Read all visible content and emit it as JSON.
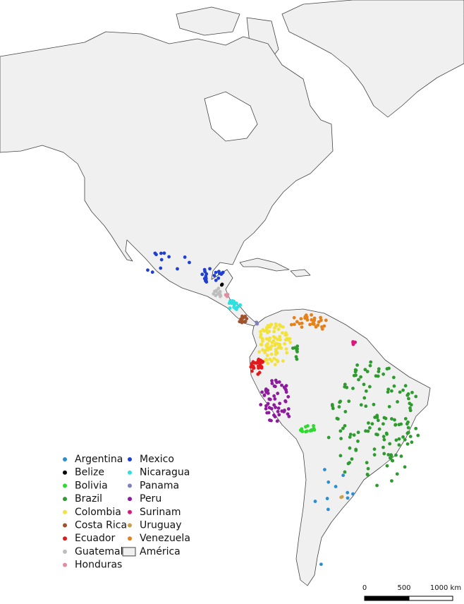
{
  "legend": {
    "items": [
      {
        "label": "Argentina",
        "color": "#2a8fd0"
      },
      {
        "label": "Belize",
        "color": "#000000"
      },
      {
        "label": "Bolivia",
        "color": "#2fd92f"
      },
      {
        "label": "Brazil",
        "color": "#2f9a2f"
      },
      {
        "label": "Colombia",
        "color": "#f2e23a"
      },
      {
        "label": "Costa Rica",
        "color": "#a0522d"
      },
      {
        "label": "Ecuador",
        "color": "#e31a1c"
      },
      {
        "label": "Guatemala",
        "color": "#bdbdbd"
      },
      {
        "label": "Honduras",
        "color": "#e08fa0"
      },
      {
        "label": "Mexico",
        "color": "#1f3fd0"
      },
      {
        "label": "Nicaragua",
        "color": "#2ee0e0"
      },
      {
        "label": "Panama",
        "color": "#8080c0"
      },
      {
        "label": "Peru",
        "color": "#8e1a9e"
      },
      {
        "label": "Surinam",
        "color": "#e0157a"
      },
      {
        "label": "Uruguay",
        "color": "#c8a050"
      },
      {
        "label": "Venezuela",
        "color": "#e6801a"
      }
    ],
    "region": {
      "label": "América"
    }
  },
  "scale_bar": {
    "labels": [
      "0",
      "500",
      "1000 km"
    ]
  }
}
